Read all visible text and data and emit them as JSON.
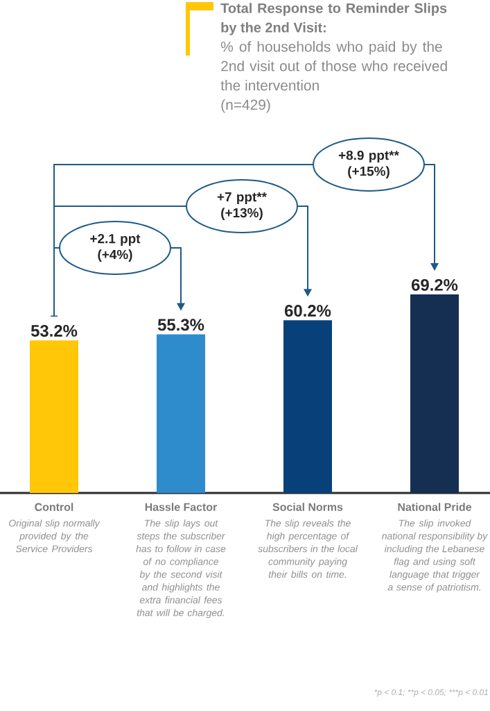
{
  "chart_data": {
    "type": "bar",
    "title": "Total Response to Reminder Slips by the 2nd Visit:",
    "subtitle": "% of households who paid by the 2nd visit out of those who received the intervention",
    "categories": [
      "Control",
      "Hassle Factor",
      "Social Norms",
      "National Pride"
    ],
    "values": [
      53.2,
      55.3,
      60.2,
      69.2
    ],
    "colors": [
      "#ffc708",
      "#2e8ccc",
      "#08417a",
      "#152f52"
    ],
    "value_labels": [
      "53.2%",
      "55.3%",
      "60.2%",
      "69.2%"
    ],
    "tick_labels": "x",
    "annotations": [
      "(n=429)",
      "+2.1 ppt (+4%)",
      "+7 ppt** (+13%)",
      "+8.9 ppt** (+15%)",
      "Original slip normally provided by the Service Providers",
      "The slip lays out steps the subscriber has to follow in case of no compliance by the second visit and highlights the extra financial fees that will be charged.",
      "The slip reveals the high percentage of subscribers in the local community paying their bills on time.",
      "The slip invoked national responsibility by including the Lebanese flag and using soft language that trigger a sense of patriotism.",
      "*p < 0.1;",
      "**p < 0.05;",
      "***p < 0.01"
    ]
  }
}
